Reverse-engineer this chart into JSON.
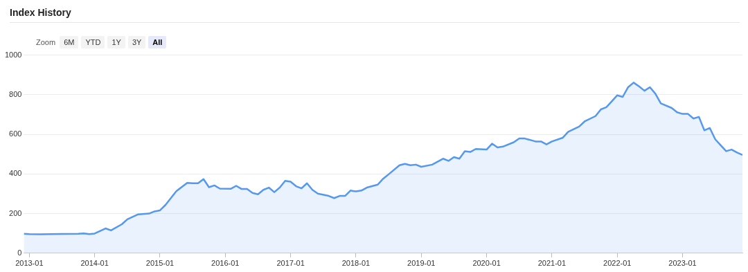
{
  "chart_data": {
    "type": "area",
    "title": "Index History",
    "annotations": [
      "Zoom",
      "6M",
      "YTD",
      "1Y",
      "3Y",
      "All"
    ],
    "x": [
      "2012-12",
      "2013-01",
      "2013-03",
      "2013-07",
      "2013-10",
      "2013-11",
      "2013-12",
      "2014-01",
      "2014-03",
      "2014-04",
      "2014-06",
      "2014-07",
      "2014-09",
      "2014-11",
      "2014-12",
      "2015-01",
      "2015-02",
      "2015-04",
      "2015-06",
      "2015-07",
      "2015-08",
      "2015-09",
      "2015-10",
      "2015-11",
      "2015-12",
      "2016-02",
      "2016-03",
      "2016-04",
      "2016-05",
      "2016-06",
      "2016-07",
      "2016-08",
      "2016-09",
      "2016-10",
      "2016-11",
      "2016-12",
      "2017-01",
      "2017-02",
      "2017-03",
      "2017-04",
      "2017-05",
      "2017-06",
      "2017-08",
      "2017-09",
      "2017-10",
      "2017-11",
      "2017-12",
      "2018-01",
      "2018-02",
      "2018-03",
      "2018-05",
      "2018-06",
      "2018-07",
      "2018-09",
      "2018-10",
      "2018-11",
      "2018-12",
      "2019-01",
      "2019-03",
      "2019-04",
      "2019-05",
      "2019-06",
      "2019-07",
      "2019-08",
      "2019-09",
      "2019-10",
      "2019-11",
      "2020-01",
      "2020-02",
      "2020-03",
      "2020-04",
      "2020-06",
      "2020-07",
      "2020-08",
      "2020-10",
      "2020-11",
      "2020-12",
      "2021-01",
      "2021-03",
      "2021-04",
      "2021-06",
      "2021-07",
      "2021-09",
      "2021-10",
      "2021-11",
      "2021-12",
      "2022-01",
      "2022-02",
      "2022-03",
      "2022-04",
      "2022-05",
      "2022-06",
      "2022-07",
      "2022-08",
      "2022-09",
      "2022-11",
      "2022-12",
      "2023-01",
      "2023-02",
      "2023-03",
      "2023-04",
      "2023-05",
      "2023-06",
      "2023-07",
      "2023-08",
      "2023-09",
      "2023-10",
      "2023-11",
      "2023-12"
    ],
    "series": [
      {
        "color": "#5598ee",
        "values": [
          98,
          96,
          95,
          97,
          98,
          100,
          96,
          99,
          125,
          115,
          146,
          171,
          196,
          200,
          211,
          216,
          243,
          313,
          355,
          353,
          353,
          374,
          333,
          342,
          326,
          325,
          340,
          324,
          324,
          304,
          297,
          320,
          331,
          308,
          331,
          365,
          361,
          338,
          327,
          353,
          320,
          301,
          289,
          278,
          289,
          289,
          316,
          312,
          316,
          331,
          346,
          376,
          398,
          444,
          451,
          444,
          447,
          436,
          447,
          462,
          477,
          466,
          485,
          477,
          515,
          511,
          526,
          523,
          553,
          534,
          538,
          560,
          579,
          579,
          564,
          564,
          549,
          564,
          583,
          613,
          639,
          665,
          692,
          726,
          737,
          767,
          797,
          789,
          838,
          861,
          842,
          820,
          838,
          805,
          756,
          733,
          711,
          703,
          703,
          680,
          688,
          620,
          632,
          575,
          545,
          515,
          523,
          508,
          496
        ]
      }
    ],
    "xlim": [
      "2012-12",
      "2023-12"
    ],
    "xticks": [
      "2013-01",
      "2014-01",
      "2015-01",
      "2016-01",
      "2017-01",
      "2018-01",
      "2019-01",
      "2020-01",
      "2021-01",
      "2022-01",
      "2023-01"
    ],
    "ylim": [
      0,
      1000
    ],
    "yticks": [
      0,
      200,
      400,
      600,
      800,
      1000
    ],
    "grid": "y",
    "legend": false
  }
}
